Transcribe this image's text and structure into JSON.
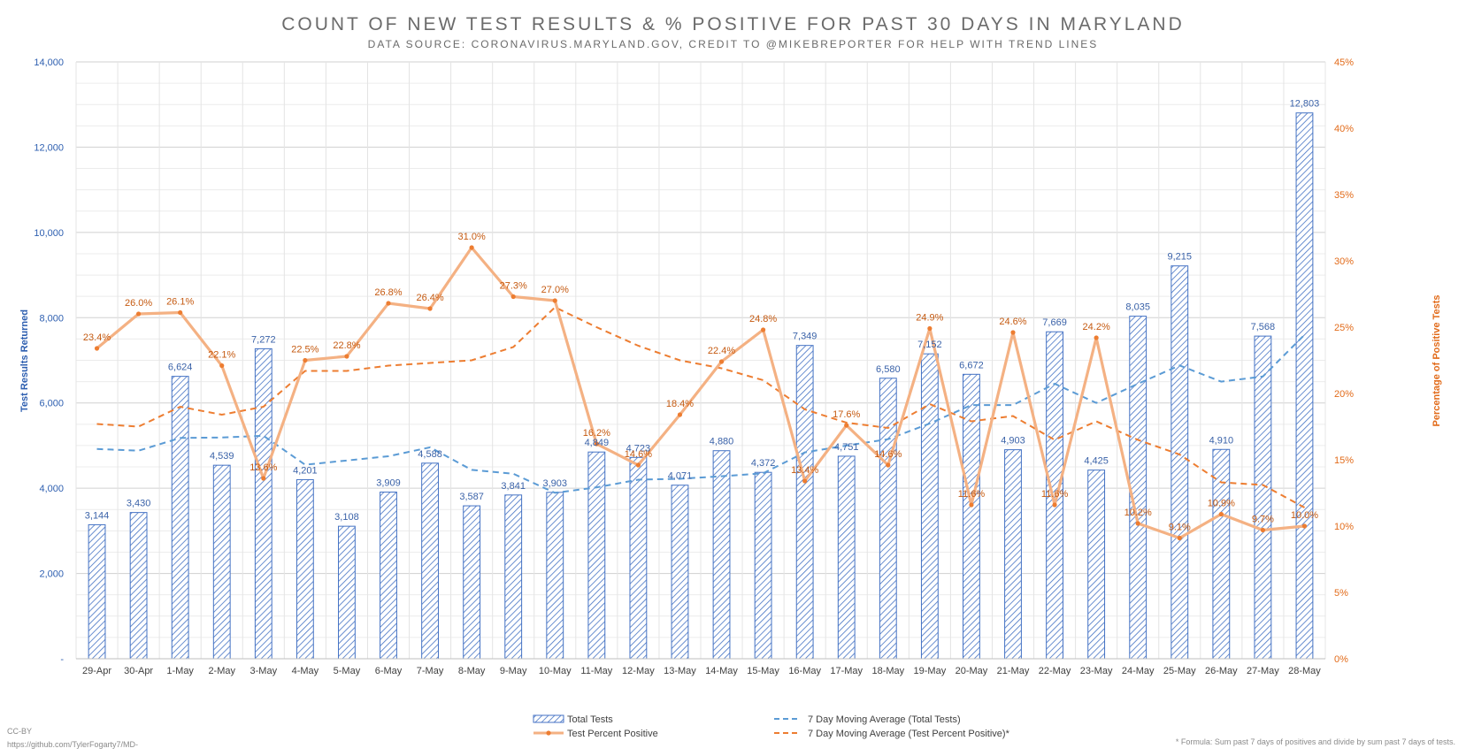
{
  "title": "COUNT OF NEW TEST RESULTS & % POSITIVE FOR PAST 30 DAYS IN MARYLAND",
  "subtitle": "DATA SOURCE: CORONAVIRUS.MARYLAND.GOV, CREDIT TO @MIKEBREPORTER FOR HELP WITH TREND LINES",
  "footer": {
    "license": "CC-BY",
    "source_url": "https://github.com/TylerFogarty7/MD-",
    "footnote": "* Formula: Sum past 7 days of positives and divide by sum past 7 days of tests."
  },
  "colors": {
    "bars": "#4472c4",
    "pct_line": "#f4b183",
    "pct_marker": "#ed7d31",
    "ma_tests": "#5b9bd5",
    "ma_pct": "#ed7d31",
    "left_axis_text": "#2e5fb0",
    "right_axis_text": "#e26b1a",
    "grid": "#d9d9d9"
  },
  "chart_data": {
    "type": "bar",
    "categories": [
      "29-Apr",
      "30-Apr",
      "1-May",
      "2-May",
      "3-May",
      "4-May",
      "5-May",
      "6-May",
      "7-May",
      "8-May",
      "9-May",
      "10-May",
      "11-May",
      "12-May",
      "13-May",
      "14-May",
      "15-May",
      "16-May",
      "17-May",
      "18-May",
      "19-May",
      "20-May",
      "21-May",
      "22-May",
      "23-May",
      "24-May",
      "25-May",
      "26-May",
      "27-May",
      "28-May"
    ],
    "ylabel": "Test Results Returned",
    "y2label": "Percentage of Positive Tests",
    "ylim": [
      0,
      14000
    ],
    "y2lim": [
      0,
      45
    ],
    "y_ticks": [
      "-",
      "2,000",
      "4,000",
      "6,000",
      "8,000",
      "10,000",
      "12,000",
      "14,000"
    ],
    "y2_ticks": [
      "0%",
      "5%",
      "10%",
      "15%",
      "20%",
      "25%",
      "30%",
      "35%",
      "40%",
      "45%"
    ],
    "grid": true,
    "legend_position": "bottom",
    "series": [
      {
        "name": "Total Tests",
        "kind": "bar",
        "axis": "left",
        "values": [
          3144,
          3430,
          6624,
          4539,
          7272,
          4201,
          3108,
          3909,
          4588,
          3587,
          3841,
          3903,
          4849,
          4723,
          4071,
          4880,
          4372,
          7349,
          4751,
          6580,
          7152,
          6672,
          4903,
          7669,
          4425,
          8035,
          9215,
          4910,
          7568,
          12803
        ],
        "labels": [
          "3,144",
          "3,430",
          "6,624",
          "4,539",
          "7,272",
          "4,201",
          "3,108",
          "3,909",
          "4,588",
          "3,587",
          "3,841",
          "3,903",
          "4,849",
          "4,723",
          "4,071",
          "4,880",
          "4,372",
          "7,349",
          "4,751",
          "6,580",
          "7,152",
          "6,672",
          "4,903",
          "7,669",
          "4,425",
          "8,035",
          "9,215",
          "4,910",
          "7,568",
          "12,803"
        ]
      },
      {
        "name": "Test Percent Positive",
        "kind": "line",
        "axis": "right",
        "values": [
          23.4,
          26.0,
          26.1,
          22.1,
          13.6,
          22.5,
          22.8,
          26.8,
          26.4,
          31.0,
          27.3,
          27.0,
          16.2,
          14.6,
          18.4,
          22.4,
          24.8,
          13.4,
          17.6,
          14.6,
          24.9,
          11.6,
          24.6,
          11.6,
          24.2,
          10.2,
          9.1,
          10.9,
          9.7,
          10.0
        ],
        "labels": [
          "23.4%",
          "26.0%",
          "26.1%",
          "22.1%",
          "13.6%",
          "22.5%",
          "22.8%",
          "26.8%",
          "26.4%",
          "31.0%",
          "27.3%",
          "27.0%",
          "16.2%",
          "14.6%",
          "18.4%",
          "22.4%",
          "24.8%",
          "13.4%",
          "17.6%",
          "14.6%",
          "24.9%",
          "11.6%",
          "24.6%",
          "11.6%",
          "24.2%",
          "10.2%",
          "9.1%",
          "10.9%",
          "9.7%",
          "10.0%"
        ]
      },
      {
        "name": "7 Day Moving Average (Total Tests)",
        "kind": "dashed-line",
        "axis": "left",
        "values": [
          4920,
          4880,
          5180,
          5190,
          5230,
          4550,
          4650,
          4750,
          4960,
          4430,
          4340,
          3890,
          4020,
          4200,
          4220,
          4280,
          4350,
          4840,
          5000,
          5150,
          5520,
          5950,
          5950,
          6450,
          6000,
          6450,
          6880,
          6500,
          6620,
          7600
        ]
      },
      {
        "name": "7 Day Moving Average (Test Percent Positive)*",
        "kind": "dashed-line",
        "axis": "right",
        "values": [
          17.7,
          17.5,
          19.0,
          18.4,
          19.0,
          21.7,
          21.7,
          22.1,
          22.3,
          22.5,
          23.5,
          26.5,
          25.0,
          23.6,
          22.5,
          21.9,
          21.0,
          18.8,
          17.8,
          17.4,
          19.2,
          17.9,
          18.3,
          16.5,
          17.9,
          16.5,
          15.4,
          13.3,
          13.1,
          11.4
        ]
      }
    ]
  }
}
